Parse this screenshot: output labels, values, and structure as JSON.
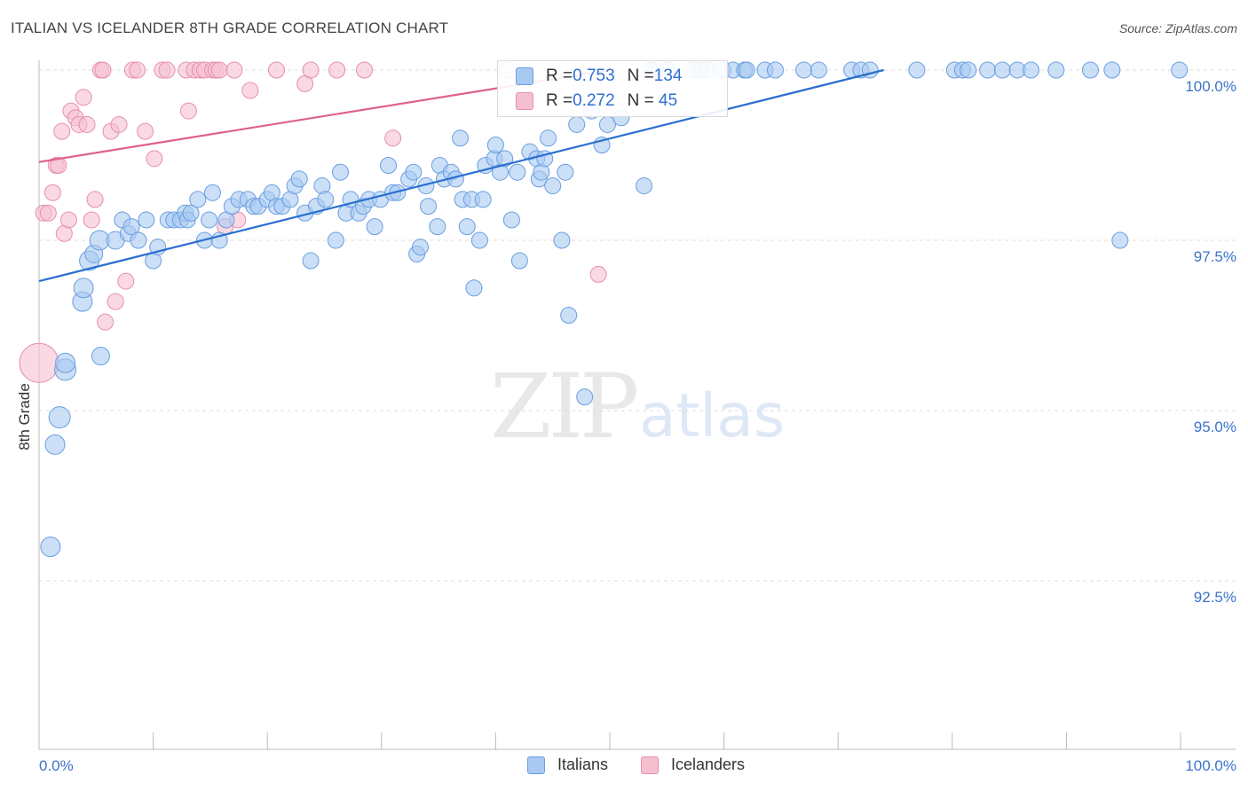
{
  "title": "ITALIAN VS ICELANDER 8TH GRADE CORRELATION CHART",
  "source": "Source: ZipAtlas.com",
  "watermark": {
    "zip": "ZIP",
    "atlas": "atlas"
  },
  "legend": {
    "italians": {
      "r_label": "R = ",
      "r_value": "0.753",
      "n_label": "N = ",
      "n_value": "134"
    },
    "icelanders": {
      "r_label": "R = ",
      "r_value": "0.272",
      "n_label": "N = ",
      "n_value": " 45"
    }
  },
  "colors": {
    "blue_fill": "#a9c9f2",
    "blue_stroke": "#6a9ee0",
    "blue_line": "#2a6fcf",
    "pink_fill": "#f6bfd0",
    "pink_stroke": "#e58fab",
    "pink_line": "#e0608a",
    "tick_text": "#3b73c9",
    "grid": "#dddddd"
  },
  "chart_data": {
    "type": "scatter",
    "title": "ITALIAN VS ICELANDER 8TH GRADE CORRELATION CHART",
    "xlabel": "",
    "ylabel": "8th Grade",
    "xlim": [
      0,
      100
    ],
    "ylim": [
      90.2,
      100.2
    ],
    "x_tick_labels": [
      "0.0%",
      "100.0%"
    ],
    "y_ticks": [
      92.5,
      95.0,
      97.5,
      100.0
    ],
    "y_tick_labels": [
      "92.5%",
      "95.0%",
      "97.5%",
      "100.0%"
    ],
    "series": [
      {
        "name": "Italians",
        "r": 0.753,
        "n": 134,
        "trend": {
          "x": [
            0,
            74
          ],
          "y": [
            96.9,
            100.0
          ]
        },
        "points": [
          [
            1.0,
            93.0,
            11
          ],
          [
            1.4,
            94.5,
            11
          ],
          [
            1.8,
            94.9,
            12
          ],
          [
            2.3,
            95.6,
            12
          ],
          [
            2.3,
            95.7,
            11
          ],
          [
            3.8,
            96.6,
            11
          ],
          [
            3.9,
            96.8,
            11
          ],
          [
            4.4,
            97.2,
            11
          ],
          [
            4.8,
            97.3,
            10
          ],
          [
            5.4,
            95.8,
            10
          ],
          [
            5.3,
            97.5,
            11
          ],
          [
            6.7,
            97.5,
            10
          ],
          [
            7.3,
            97.8,
            9
          ],
          [
            7.8,
            97.6,
            9
          ],
          [
            8.1,
            97.7,
            9
          ],
          [
            8.7,
            97.5,
            9
          ],
          [
            9.4,
            97.8,
            9
          ],
          [
            10.0,
            97.2,
            9
          ],
          [
            10.4,
            97.4,
            9
          ],
          [
            11.3,
            97.8,
            9
          ],
          [
            11.8,
            97.8,
            9
          ],
          [
            12.4,
            97.8,
            9
          ],
          [
            12.8,
            97.9,
            9
          ],
          [
            13.0,
            97.8,
            9
          ],
          [
            13.3,
            97.9,
            9
          ],
          [
            13.9,
            98.1,
            9
          ],
          [
            14.5,
            97.5,
            9
          ],
          [
            14.9,
            97.8,
            9
          ],
          [
            15.2,
            98.2,
            9
          ],
          [
            15.8,
            97.5,
            9
          ],
          [
            16.4,
            97.8,
            9
          ],
          [
            16.9,
            98.0,
            9
          ],
          [
            17.5,
            98.1,
            9
          ],
          [
            18.3,
            98.1,
            9
          ],
          [
            18.8,
            98.0,
            9
          ],
          [
            19.2,
            98.0,
            9
          ],
          [
            20.0,
            98.1,
            9
          ],
          [
            20.4,
            98.2,
            9
          ],
          [
            20.8,
            98.0,
            9
          ],
          [
            21.3,
            98.0,
            9
          ],
          [
            22.0,
            98.1,
            9
          ],
          [
            22.4,
            98.3,
            9
          ],
          [
            22.8,
            98.4,
            9
          ],
          [
            23.3,
            97.9,
            9
          ],
          [
            23.8,
            97.2,
            9
          ],
          [
            24.3,
            98.0,
            9
          ],
          [
            24.8,
            98.3,
            9
          ],
          [
            25.1,
            98.1,
            9
          ],
          [
            26.0,
            97.5,
            9
          ],
          [
            26.4,
            98.5,
            9
          ],
          [
            26.9,
            97.9,
            9
          ],
          [
            27.3,
            98.1,
            9
          ],
          [
            28.0,
            97.9,
            9
          ],
          [
            28.4,
            98.0,
            9
          ],
          [
            28.9,
            98.1,
            9
          ],
          [
            29.4,
            97.7,
            9
          ],
          [
            29.9,
            98.1,
            9
          ],
          [
            30.6,
            98.6,
            9
          ],
          [
            31.0,
            98.2,
            9
          ],
          [
            31.4,
            98.2,
            9
          ],
          [
            32.4,
            98.4,
            9
          ],
          [
            32.8,
            98.5,
            9
          ],
          [
            33.1,
            97.3,
            9
          ],
          [
            33.4,
            97.4,
            9
          ],
          [
            33.9,
            98.3,
            9
          ],
          [
            34.1,
            98.0,
            9
          ],
          [
            35.1,
            98.6,
            9
          ],
          [
            35.5,
            98.4,
            9
          ],
          [
            36.1,
            98.5,
            9
          ],
          [
            36.5,
            98.4,
            9
          ],
          [
            37.1,
            98.1,
            9
          ],
          [
            37.5,
            97.7,
            9
          ],
          [
            37.9,
            98.1,
            9
          ],
          [
            38.1,
            96.8,
            9
          ],
          [
            38.6,
            97.5,
            9
          ],
          [
            38.9,
            98.1,
            9
          ],
          [
            39.1,
            98.6,
            9
          ],
          [
            39.9,
            98.7,
            9
          ],
          [
            40.4,
            98.5,
            9
          ],
          [
            40.8,
            98.7,
            9
          ],
          [
            41.4,
            97.8,
            9
          ],
          [
            42.1,
            97.2,
            9
          ],
          [
            43.0,
            98.8,
            9
          ],
          [
            43.6,
            98.7,
            9
          ],
          [
            43.8,
            98.4,
            9
          ],
          [
            44.0,
            98.5,
            9
          ],
          [
            44.3,
            98.7,
            9
          ],
          [
            45.0,
            98.3,
            9
          ],
          [
            45.8,
            97.5,
            9
          ],
          [
            46.1,
            98.5,
            9
          ],
          [
            46.4,
            96.4,
            9
          ],
          [
            47.1,
            99.2,
            9
          ],
          [
            47.8,
            95.2,
            9
          ],
          [
            49.3,
            98.9,
            9
          ],
          [
            49.8,
            99.2,
            9
          ],
          [
            51.0,
            99.3,
            9
          ],
          [
            53.0,
            98.3,
            9
          ],
          [
            53.6,
            100.0,
            9
          ],
          [
            54.0,
            100.0,
            9
          ],
          [
            55.0,
            100.0,
            9
          ],
          [
            57.3,
            100.0,
            9
          ],
          [
            58.0,
            100.0,
            9
          ],
          [
            58.5,
            100.0,
            9
          ],
          [
            59.9,
            100.0,
            9
          ],
          [
            60.8,
            100.0,
            9
          ],
          [
            61.8,
            100.0,
            9
          ],
          [
            62.0,
            100.0,
            9
          ],
          [
            63.6,
            100.0,
            9
          ],
          [
            64.5,
            100.0,
            9
          ],
          [
            67.0,
            100.0,
            9
          ],
          [
            68.3,
            100.0,
            9
          ],
          [
            71.2,
            100.0,
            9
          ],
          [
            72.0,
            100.0,
            9
          ],
          [
            72.8,
            100.0,
            9
          ],
          [
            76.9,
            100.0,
            9
          ],
          [
            80.2,
            100.0,
            9
          ],
          [
            80.9,
            100.0,
            9
          ],
          [
            81.4,
            100.0,
            9
          ],
          [
            83.1,
            100.0,
            9
          ],
          [
            84.4,
            100.0,
            9
          ],
          [
            85.7,
            100.0,
            9
          ],
          [
            86.9,
            100.0,
            9
          ],
          [
            89.1,
            100.0,
            9
          ],
          [
            92.1,
            100.0,
            9
          ],
          [
            94.0,
            100.0,
            9
          ],
          [
            94.7,
            97.5,
            9
          ],
          [
            99.9,
            100.0,
            9
          ],
          [
            41.9,
            98.5,
            9
          ],
          [
            40.0,
            98.9,
            9
          ],
          [
            36.9,
            99.0,
            9
          ],
          [
            34.9,
            97.7,
            9
          ],
          [
            44.6,
            99.0,
            9
          ],
          [
            48.4,
            99.4,
            9
          ]
        ]
      },
      {
        "name": "Icelanders",
        "r": 0.272,
        "n": 45,
        "trend": {
          "x": [
            0,
            50
          ],
          "y": [
            98.65,
            100.0
          ]
        },
        "points": [
          [
            0.0,
            95.7,
            22
          ],
          [
            0.4,
            97.9,
            9
          ],
          [
            0.8,
            97.9,
            9
          ],
          [
            1.2,
            98.2,
            9
          ],
          [
            1.5,
            98.6,
            9
          ],
          [
            1.7,
            98.6,
            9
          ],
          [
            2.0,
            99.1,
            9
          ],
          [
            2.2,
            97.6,
            9
          ],
          [
            2.6,
            97.8,
            9
          ],
          [
            2.8,
            99.4,
            9
          ],
          [
            3.2,
            99.3,
            9
          ],
          [
            3.5,
            99.2,
            9
          ],
          [
            3.9,
            99.6,
            9
          ],
          [
            4.2,
            99.2,
            9
          ],
          [
            4.6,
            97.8,
            9
          ],
          [
            4.9,
            98.1,
            9
          ],
          [
            5.4,
            100.0,
            9
          ],
          [
            5.6,
            100.0,
            9
          ],
          [
            5.8,
            96.3,
            9
          ],
          [
            6.3,
            99.1,
            9
          ],
          [
            6.7,
            96.6,
            9
          ],
          [
            7.0,
            99.2,
            9
          ],
          [
            7.6,
            96.9,
            9
          ],
          [
            8.2,
            100.0,
            9
          ],
          [
            8.6,
            100.0,
            9
          ],
          [
            9.3,
            99.1,
            9
          ],
          [
            10.1,
            98.7,
            9
          ],
          [
            10.8,
            100.0,
            9
          ],
          [
            11.2,
            100.0,
            9
          ],
          [
            12.9,
            100.0,
            9
          ],
          [
            13.1,
            99.4,
            9
          ],
          [
            13.6,
            100.0,
            9
          ],
          [
            14.1,
            100.0,
            9
          ],
          [
            14.5,
            100.0,
            9
          ],
          [
            15.2,
            100.0,
            9
          ],
          [
            15.5,
            100.0,
            9
          ],
          [
            15.8,
            100.0,
            9
          ],
          [
            16.3,
            97.7,
            9
          ],
          [
            17.1,
            100.0,
            9
          ],
          [
            17.4,
            97.8,
            9
          ],
          [
            18.5,
            99.7,
            9
          ],
          [
            20.8,
            100.0,
            9
          ],
          [
            23.3,
            99.8,
            9
          ],
          [
            23.8,
            100.0,
            9
          ],
          [
            26.1,
            100.0,
            9
          ],
          [
            28.5,
            100.0,
            9
          ],
          [
            31.0,
            99.0,
            9
          ],
          [
            41.0,
            100.0,
            9
          ],
          [
            49.0,
            97.0,
            9
          ]
        ]
      }
    ],
    "bottom_legend": [
      "Italians",
      "Icelanders"
    ]
  }
}
